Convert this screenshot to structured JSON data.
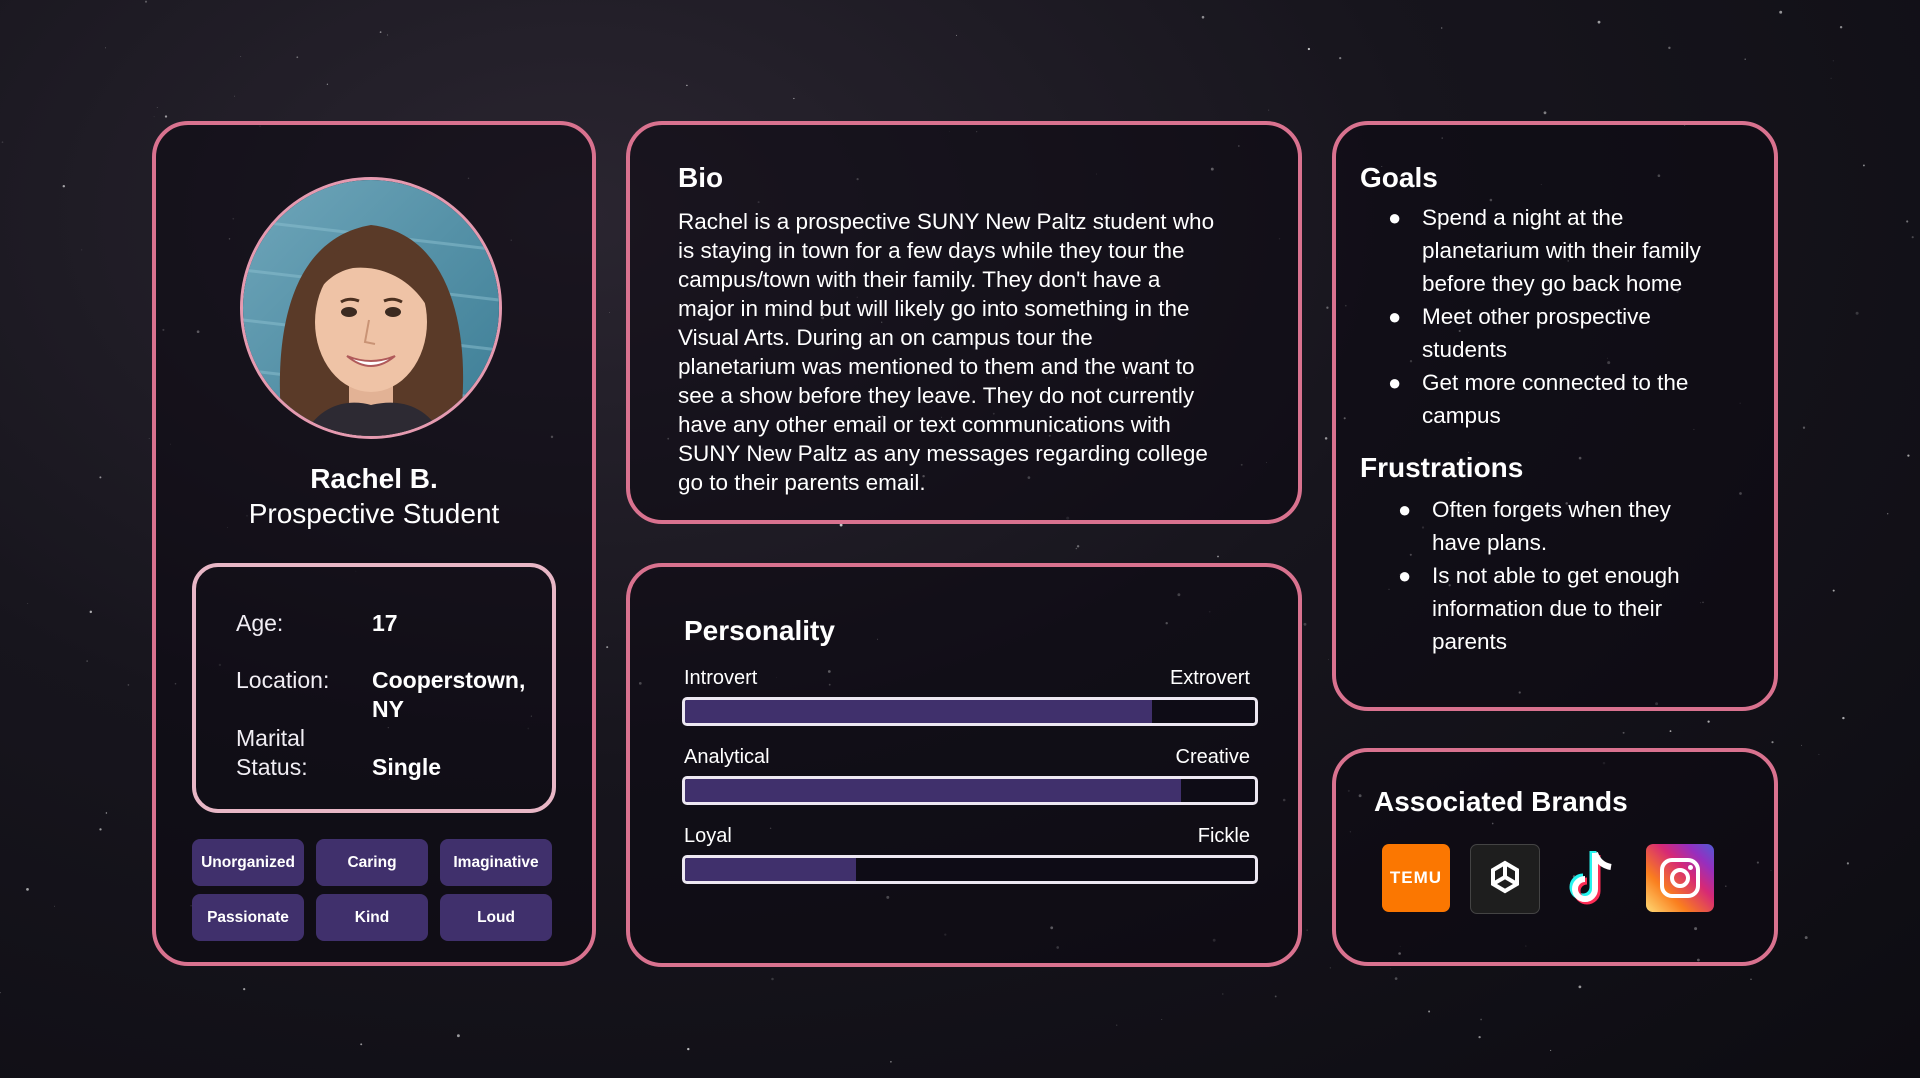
{
  "profile": {
    "name": "Rachel B.",
    "role": "Prospective Student",
    "info": {
      "age_label": "Age:",
      "age_value": "17",
      "location_label": "Location:",
      "location_value_line1": "Cooperstown,",
      "location_value_line2": "NY",
      "marital_label_line1": "Marital",
      "marital_label_line2": "Status:",
      "marital_value": "Single"
    },
    "traits": [
      "Unorganized",
      "Caring",
      "Imaginative",
      "Passionate",
      "Kind",
      "Loud"
    ]
  },
  "bio": {
    "title": "Bio",
    "lines": [
      "Rachel is a prospective SUNY New Paltz student who",
      "is staying in town for a few days while they tour the",
      "campus/town with their family. They don't have a",
      "major in mind but will likely go into something in the",
      "Visual Arts. During an on campus tour the",
      "planetarium was mentioned to them and the want to",
      "see a show before they leave. They do not currently",
      "have any other email or text communications with",
      "SUNY New Paltz as any messages regarding college",
      "go to their parents email."
    ]
  },
  "personality": {
    "title": "Personality",
    "scales": [
      {
        "left": "Introvert",
        "right": "Extrovert",
        "value": 0.82
      },
      {
        "left": "Analytical",
        "right": "Creative",
        "value": 0.87
      },
      {
        "left": "Loyal",
        "right": "Fickle",
        "value": 0.3
      }
    ],
    "bar_color": "#40306c"
  },
  "goals": {
    "title": "Goals",
    "items": [
      {
        "lines": [
          "Spend a night at the",
          "planetarium with their family",
          "before they go back home"
        ]
      },
      {
        "lines": [
          "Meet other prospective",
          "students"
        ]
      },
      {
        "lines": [
          "Get more connected to the",
          "campus"
        ]
      }
    ]
  },
  "frustrations": {
    "title": "Frustrations",
    "items": [
      {
        "lines": [
          "Often forgets when they",
          "have plans."
        ]
      },
      {
        "lines": [
          "Is not able to get enough",
          "information due to their",
          "parents"
        ]
      }
    ]
  },
  "brands": {
    "title": "Associated Brands",
    "items": [
      {
        "icon": "temu-logo-icon",
        "logo_text": "TEMU",
        "color": "#fb7701"
      },
      {
        "icon": "chatgpt-logo-icon",
        "color": "#1e1e1e"
      },
      {
        "icon": "tiktok-logo-icon",
        "color": "#000000"
      },
      {
        "icon": "instagram-logo-icon",
        "color": "#e1306c"
      }
    ]
  },
  "colors": {
    "border": "#d9728f",
    "tag_bg": "#40306c",
    "info_border": "#e8b7c6"
  }
}
